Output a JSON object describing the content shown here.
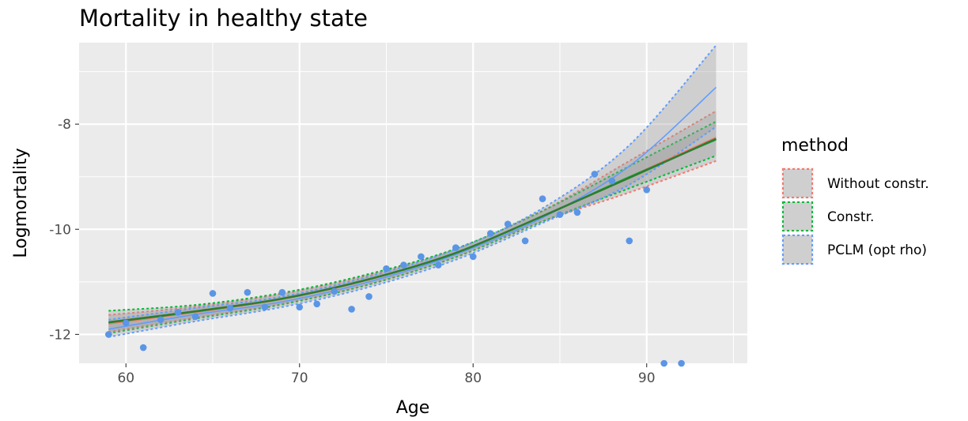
{
  "chart_data": {
    "type": "line",
    "title": "Mortality in healthy state",
    "xlabel": "Age",
    "ylabel": "Logmortality",
    "xlim": [
      57.3,
      95.8
    ],
    "ylim": [
      -12.55,
      -6.45
    ],
    "x_ticks": [
      60,
      70,
      80,
      90
    ],
    "x_tick_labels": [
      "60",
      "70",
      "80",
      "90"
    ],
    "y_ticks": [
      -8,
      -10,
      -12
    ],
    "y_tick_labels": [
      "-8",
      "-10",
      "-12"
    ],
    "grid": true,
    "legend_title": "method",
    "legend_position": "right",
    "series": [
      {
        "name": "Without constr.",
        "color": "#f8766d",
        "x": [
          59,
          64,
          69,
          74,
          79,
          84,
          89,
          94
        ],
        "fit": [
          -11.8,
          -11.58,
          -11.33,
          -10.96,
          -10.45,
          -9.75,
          -9.0,
          -8.25
        ],
        "lower": [
          -11.95,
          -11.68,
          -11.42,
          -11.05,
          -10.53,
          -9.85,
          -9.3,
          -8.7
        ],
        "upper": [
          -11.63,
          -11.47,
          -11.23,
          -10.87,
          -10.37,
          -9.65,
          -8.7,
          -7.75
        ]
      },
      {
        "name": "Constr.",
        "color": "#00ba38",
        "x": [
          59,
          64,
          69,
          74,
          79,
          84,
          89,
          94
        ],
        "fit": [
          -11.78,
          -11.57,
          -11.32,
          -10.95,
          -10.45,
          -9.75,
          -9.0,
          -8.3
        ],
        "lower": [
          -11.98,
          -11.7,
          -11.43,
          -11.05,
          -10.53,
          -9.85,
          -9.22,
          -8.6
        ],
        "upper": [
          -11.55,
          -11.44,
          -11.21,
          -10.85,
          -10.37,
          -9.65,
          -8.8,
          -7.95
        ]
      },
      {
        "name": "PCLM (opt rho)",
        "color": "#619cff",
        "x": [
          59,
          64,
          69,
          74,
          79,
          84,
          89,
          94
        ],
        "fit": [
          -11.9,
          -11.62,
          -11.38,
          -11.0,
          -10.48,
          -9.78,
          -8.8,
          -7.3
        ],
        "lower": [
          -12.05,
          -11.75,
          -11.48,
          -11.1,
          -10.58,
          -9.88,
          -9.15,
          -8.05
        ],
        "upper": [
          -11.72,
          -11.5,
          -11.28,
          -10.9,
          -10.38,
          -9.6,
          -8.4,
          -6.5
        ]
      }
    ],
    "smooth_line": {
      "color": "#2e7d32",
      "x": [
        59,
        64,
        69,
        74,
        79,
        84,
        89,
        94
      ],
      "y": [
        -11.77,
        -11.56,
        -11.32,
        -10.95,
        -10.45,
        -9.75,
        -9.02,
        -8.28
      ]
    },
    "points": {
      "color": "#5b95e6",
      "x": [
        59,
        60,
        61,
        62,
        63,
        64,
        65,
        66,
        67,
        68,
        69,
        70,
        71,
        72,
        73,
        74,
        75,
        76,
        77,
        78,
        79,
        80,
        81,
        82,
        83,
        84,
        85,
        86,
        87,
        88,
        89,
        90,
        91,
        92
      ],
      "y": [
        -12.0,
        -11.78,
        -12.25,
        -11.72,
        -11.58,
        -11.66,
        -11.22,
        -11.5,
        -11.2,
        -11.48,
        -11.2,
        -11.48,
        -11.42,
        -11.18,
        -11.52,
        -11.28,
        -10.75,
        -10.68,
        -10.52,
        -10.68,
        -10.35,
        -10.52,
        -10.08,
        -9.9,
        -10.22,
        -9.42,
        -9.72,
        -9.68,
        -8.95,
        -9.08,
        -10.22,
        -9.25,
        -12.55,
        -12.55
      ]
    }
  }
}
